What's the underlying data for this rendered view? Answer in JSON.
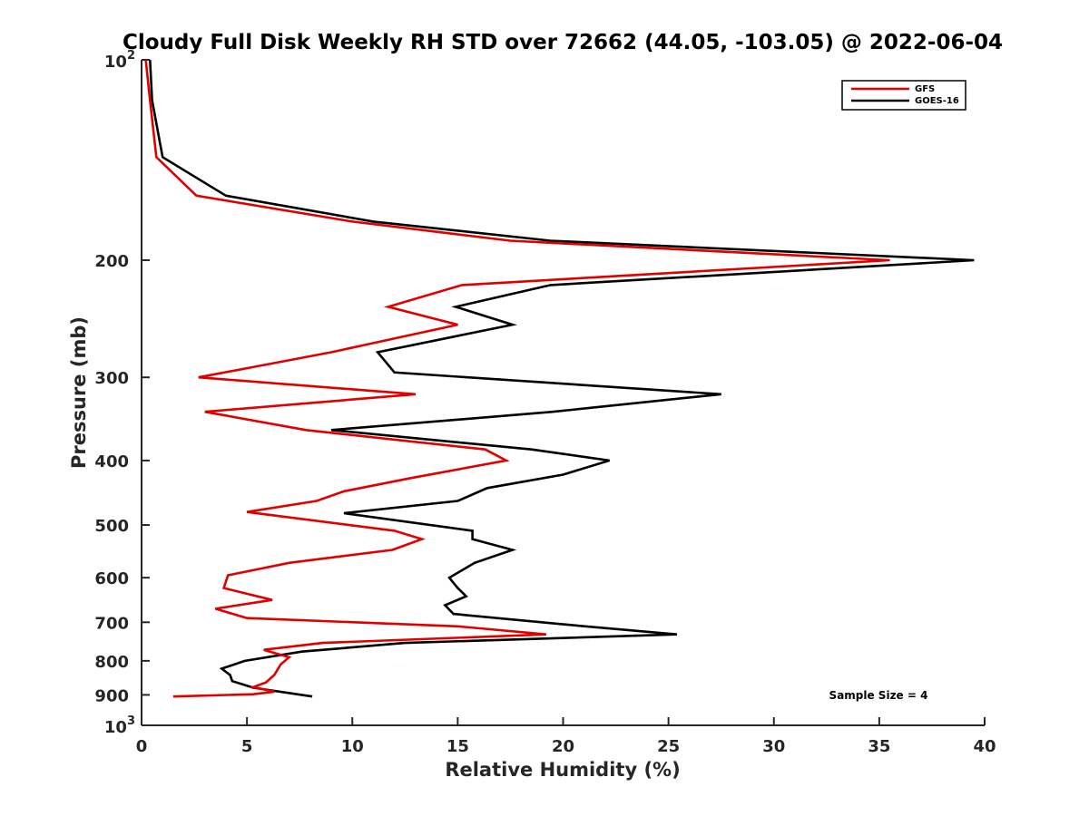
{
  "chart_data": {
    "type": "line",
    "title": "Cloudy Full Disk Weekly RH STD over 72662 (44.05, -103.05) @ 2022-06-04",
    "xlabel": "Relative Humidity (%)",
    "ylabel": "Pressure (mb)",
    "xlim": [
      0,
      40
    ],
    "ylim": [
      1000,
      100
    ],
    "y_scale": "log",
    "y_reversed": true,
    "grid": false,
    "legend_position": "top-right",
    "annotation": "Sample Size = 4",
    "x_ticks": [
      0,
      5,
      10,
      15,
      20,
      25,
      30,
      35,
      40
    ],
    "y_ticks": [
      {
        "value": 100,
        "base": "10",
        "exp": "2"
      },
      {
        "value": 200,
        "label": "200"
      },
      {
        "value": 300,
        "label": "300"
      },
      {
        "value": 400,
        "label": "400"
      },
      {
        "value": 500,
        "label": "500"
      },
      {
        "value": 600,
        "label": "600"
      },
      {
        "value": 700,
        "label": "700"
      },
      {
        "value": 800,
        "label": "800"
      },
      {
        "value": 900,
        "label": "900"
      },
      {
        "value": 1000,
        "base": "10",
        "exp": "3"
      }
    ],
    "series": [
      {
        "name": "GFS",
        "color": "#e00000",
        "points": [
          [
            0.2,
            100
          ],
          [
            0.4,
            115
          ],
          [
            0.7,
            140
          ],
          [
            2.6,
            160
          ],
          [
            10,
            175
          ],
          [
            17.5,
            187
          ],
          [
            35.5,
            200
          ],
          [
            15.2,
            218
          ],
          [
            11.7,
            235
          ],
          [
            15,
            250
          ],
          [
            9,
            275
          ],
          [
            2.7,
            300
          ],
          [
            13,
            318
          ],
          [
            3.0,
            338
          ],
          [
            7.8,
            360
          ],
          [
            16.3,
            385
          ],
          [
            17.3,
            400
          ],
          [
            12.8,
            425
          ],
          [
            9.6,
            445
          ],
          [
            8.3,
            460
          ],
          [
            5.0,
            478
          ],
          [
            12,
            510
          ],
          [
            13.3,
            525
          ],
          [
            11.9,
            545
          ],
          [
            7,
            570
          ],
          [
            4.1,
            595
          ],
          [
            3.9,
            622
          ],
          [
            6.2,
            648
          ],
          [
            3.5,
            668
          ],
          [
            5.0,
            690
          ],
          [
            15,
            710
          ],
          [
            19.2,
            730
          ],
          [
            8.6,
            752
          ],
          [
            5.8,
            770
          ],
          [
            7.0,
            790
          ],
          [
            6.6,
            810
          ],
          [
            6.3,
            840
          ],
          [
            5.9,
            862
          ],
          [
            5.3,
            876
          ],
          [
            6.3,
            890
          ],
          [
            5.3,
            898
          ],
          [
            1.5,
            905
          ]
        ]
      },
      {
        "name": "GOES-16",
        "color": "#000000",
        "points": [
          [
            0.4,
            100
          ],
          [
            0.5,
            115
          ],
          [
            1.0,
            140
          ],
          [
            4.0,
            160
          ],
          [
            11,
            175
          ],
          [
            19.4,
            187
          ],
          [
            39.5,
            200
          ],
          [
            19.4,
            218
          ],
          [
            14.9,
            235
          ],
          [
            17.6,
            250
          ],
          [
            11.2,
            275
          ],
          [
            12.0,
            295
          ],
          [
            27.5,
            318
          ],
          [
            19.5,
            338
          ],
          [
            9.0,
            360
          ],
          [
            18.5,
            385
          ],
          [
            22.2,
            400
          ],
          [
            20.0,
            420
          ],
          [
            16.4,
            440
          ],
          [
            15.0,
            460
          ],
          [
            9.6,
            480
          ],
          [
            15.7,
            510
          ],
          [
            15.7,
            525
          ],
          [
            17.6,
            545
          ],
          [
            15.8,
            570
          ],
          [
            14.6,
            600
          ],
          [
            15.0,
            622
          ],
          [
            15.4,
            640
          ],
          [
            14.4,
            660
          ],
          [
            14.8,
            680
          ],
          [
            20,
            705
          ],
          [
            25.4,
            730
          ],
          [
            12.5,
            752
          ],
          [
            7.6,
            775
          ],
          [
            4.9,
            800
          ],
          [
            3.8,
            822
          ],
          [
            4.2,
            840
          ],
          [
            4.3,
            858
          ],
          [
            5.3,
            878
          ],
          [
            8.1,
            905
          ]
        ]
      }
    ]
  }
}
